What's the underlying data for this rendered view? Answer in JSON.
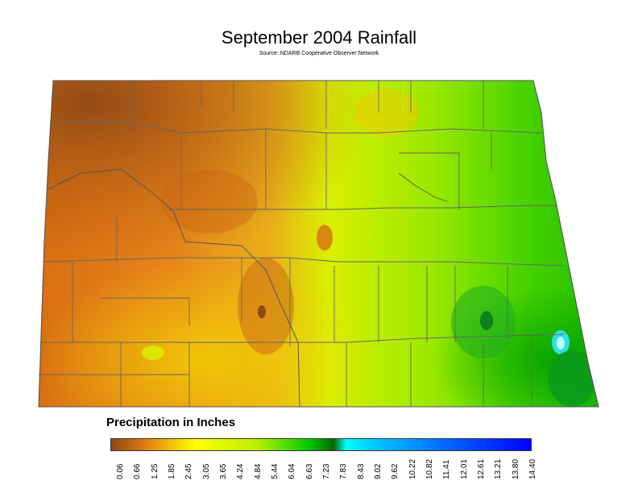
{
  "title": "September 2004 Rainfall",
  "source": "Source: NDARB Cooperative Observer Network",
  "legend": {
    "title": "Precipitation in Inches",
    "ticks": [
      "0.06",
      "0.66",
      "1.25",
      "1.85",
      "2.45",
      "3.05",
      "3.65",
      "4.24",
      "4.84",
      "5.44",
      "6.04",
      "6.63",
      "7.23",
      "7.83",
      "8.43",
      "9.02",
      "9.62",
      "10.22",
      "10.82",
      "11.41",
      "12.01",
      "12.61",
      "13.21",
      "13.80",
      "14.40"
    ],
    "colors": {
      "min": "#8a4a18",
      "low": "#e07a10",
      "mid": "#ffff00",
      "green": "#00cc00",
      "dark_green": "#006600",
      "cyan": "#00ffff",
      "blue": "#0066ff",
      "max": "#0000ff"
    }
  }
}
